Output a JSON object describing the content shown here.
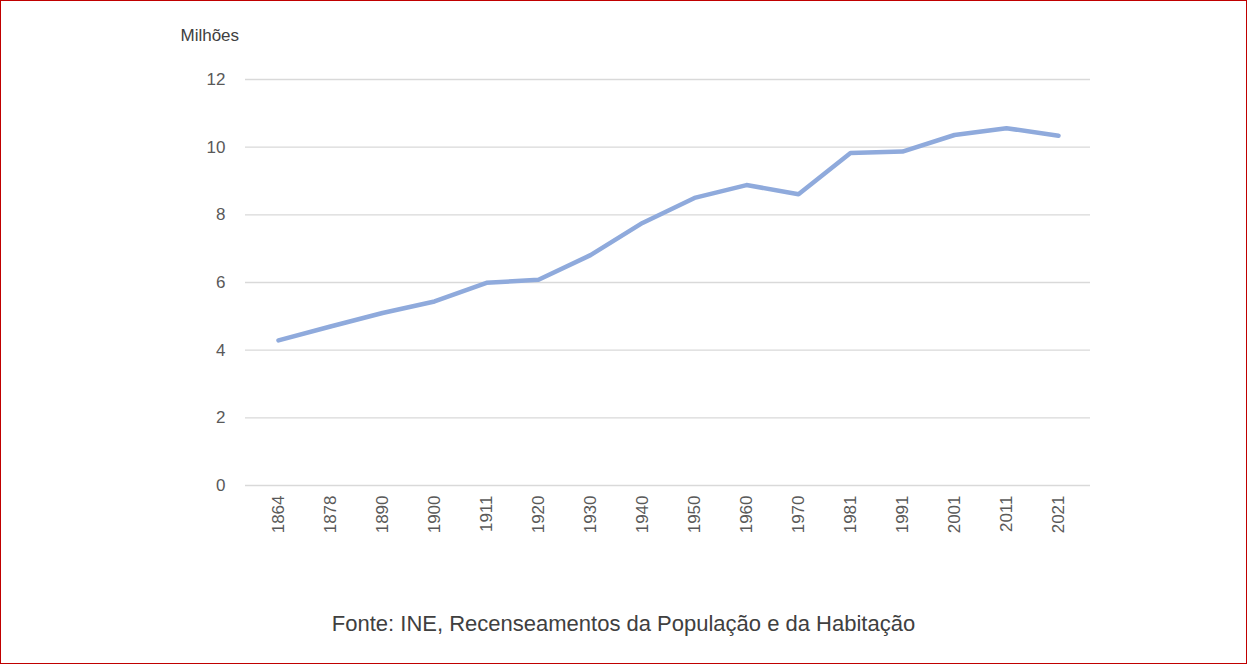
{
  "chart_data": {
    "type": "line",
    "y_label": "Milhões",
    "caption": "Fonte: INE, Recenseamentos da População e da Habitação",
    "categories": [
      "1864",
      "1878",
      "1890",
      "1900",
      "1911",
      "1920",
      "1930",
      "1940",
      "1950",
      "1960",
      "1970",
      "1981",
      "1991",
      "2001",
      "2011",
      "2021"
    ],
    "values": [
      4.29,
      4.7,
      5.1,
      5.44,
      5.99,
      6.08,
      6.81,
      7.76,
      8.5,
      8.88,
      8.61,
      9.83,
      9.87,
      10.36,
      10.56,
      10.34
    ],
    "color": "#8faadc",
    "ylim": [
      0,
      12
    ],
    "yticks": [
      0,
      2,
      4,
      6,
      8,
      10,
      12
    ],
    "grid": true
  }
}
